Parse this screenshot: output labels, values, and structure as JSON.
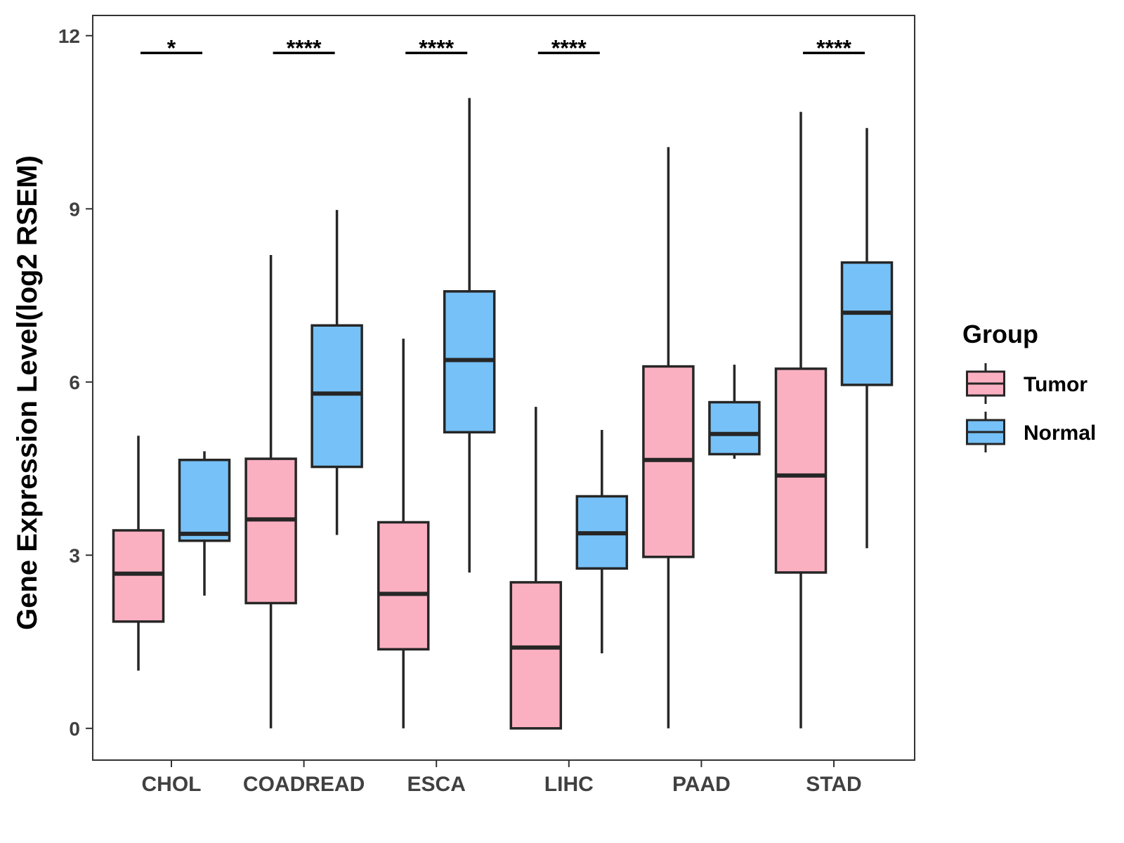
{
  "chart_data": {
    "type": "boxplot",
    "title": "",
    "xlabel": "",
    "ylabel": "Gene Expression Level(log2 RSEM)",
    "ylim": [
      -0.55,
      12.35
    ],
    "yticks": [
      0,
      3,
      6,
      9,
      12
    ],
    "ytick_labels": [
      "0",
      "3",
      "6",
      "9",
      "12"
    ],
    "grid": false,
    "categories": [
      "CHOL",
      "COADREAD",
      "ESCA",
      "LIHC",
      "PAAD",
      "STAD"
    ],
    "legend": {
      "title": "Group",
      "position": "right",
      "entries": [
        {
          "name": "Tumor",
          "color": "#FBB0C1"
        },
        {
          "name": "Normal",
          "color": "#76C1F8"
        }
      ]
    },
    "series": [
      {
        "name": "Tumor",
        "color": "#FBB0C1",
        "boxes": [
          {
            "min": 1.0,
            "q1": 1.85,
            "median": 2.68,
            "q3": 3.43,
            "max": 5.07
          },
          {
            "min": 0.0,
            "q1": 2.17,
            "median": 3.62,
            "q3": 4.67,
            "max": 8.2
          },
          {
            "min": 0.0,
            "q1": 1.37,
            "median": 2.33,
            "q3": 3.57,
            "max": 6.75
          },
          {
            "min": 0.0,
            "q1": 0.0,
            "median": 1.4,
            "q3": 2.53,
            "max": 5.57
          },
          {
            "min": 0.0,
            "q1": 2.97,
            "median": 4.65,
            "q3": 6.27,
            "max": 10.07
          },
          {
            "min": 0.0,
            "q1": 2.7,
            "median": 4.38,
            "q3": 6.23,
            "max": 10.68
          }
        ]
      },
      {
        "name": "Normal",
        "color": "#76C1F8",
        "boxes": [
          {
            "min": 2.3,
            "q1": 3.25,
            "median": 3.37,
            "q3": 4.65,
            "max": 4.8
          },
          {
            "min": 3.35,
            "q1": 4.53,
            "median": 5.8,
            "q3": 6.98,
            "max": 8.98
          },
          {
            "min": 2.7,
            "q1": 5.13,
            "median": 6.38,
            "q3": 7.57,
            "max": 10.92
          },
          {
            "min": 1.3,
            "q1": 2.77,
            "median": 3.38,
            "q3": 4.02,
            "max": 5.17
          },
          {
            "min": 4.67,
            "q1": 4.75,
            "median": 5.1,
            "q3": 5.65,
            "max": 6.3
          },
          {
            "min": 3.12,
            "q1": 5.95,
            "median": 7.2,
            "q3": 8.07,
            "max": 10.4
          }
        ]
      }
    ],
    "significance": [
      {
        "category": "CHOL",
        "label": "*"
      },
      {
        "category": "COADREAD",
        "label": "****"
      },
      {
        "category": "ESCA",
        "label": "****"
      },
      {
        "category": "LIHC",
        "label": "****"
      },
      {
        "category": "PAAD",
        "label": ""
      },
      {
        "category": "STAD",
        "label": "****"
      }
    ],
    "significance_level": 11.7
  }
}
